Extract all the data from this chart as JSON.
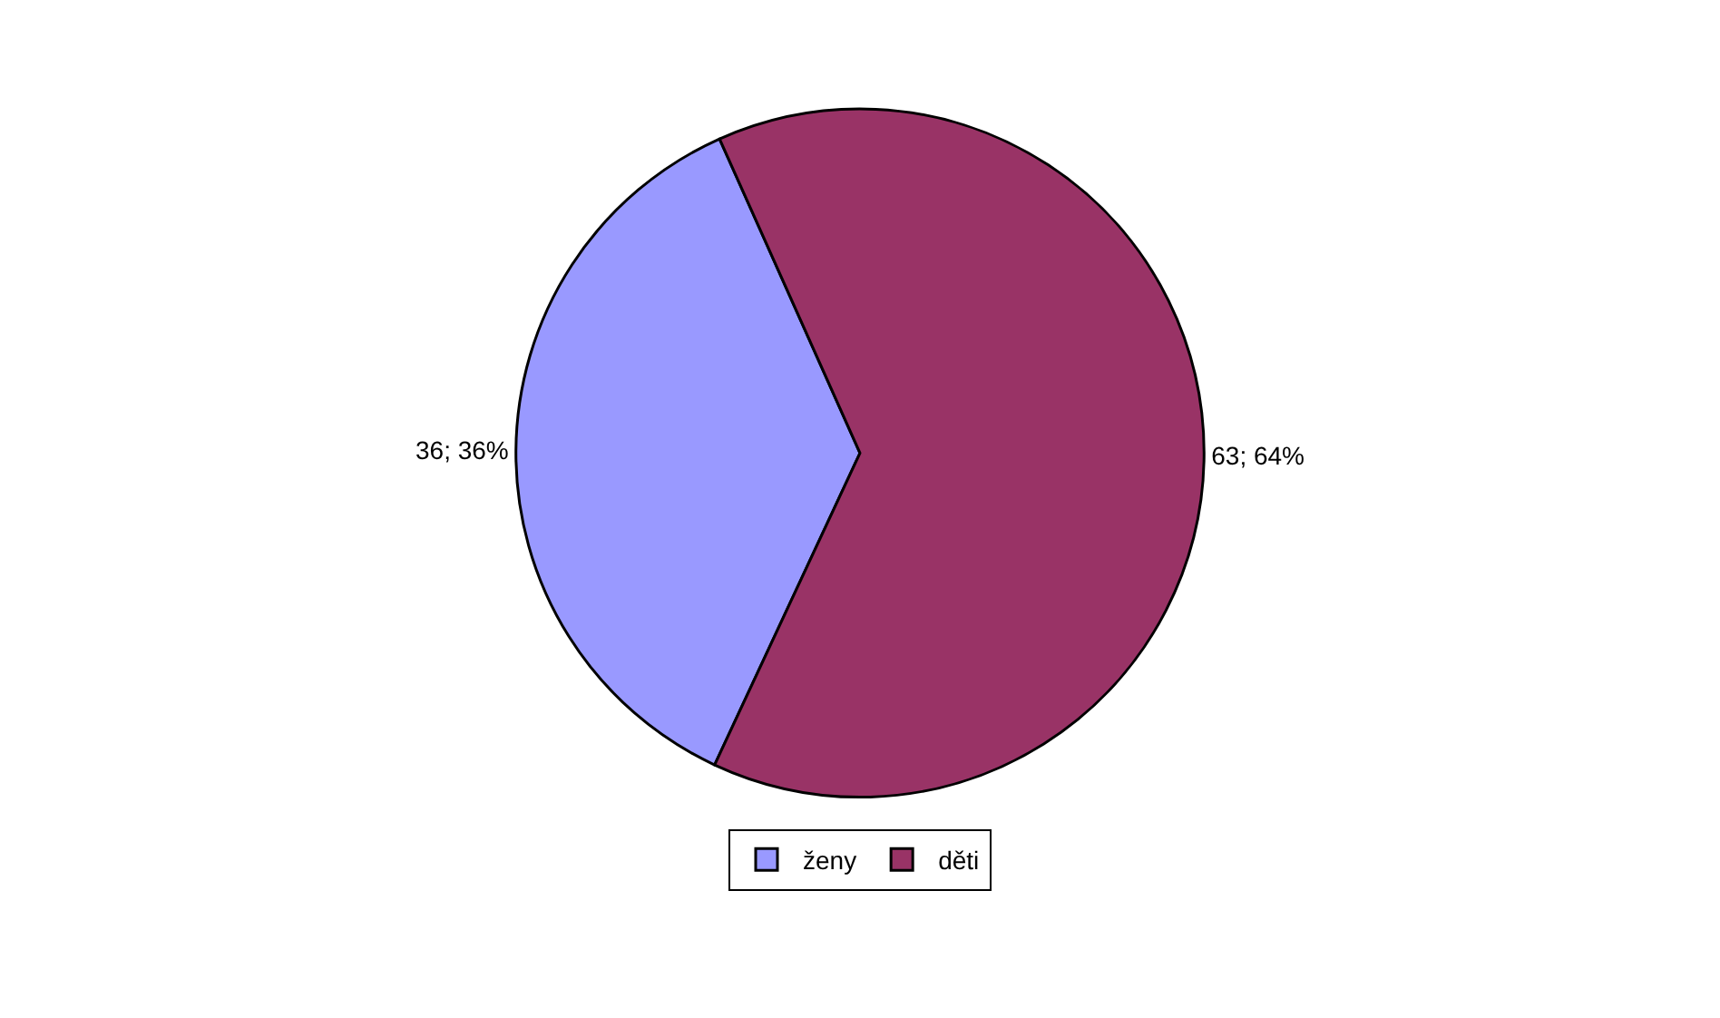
{
  "chart_data": {
    "type": "pie",
    "categories": [
      "ženy",
      "děti"
    ],
    "values": [
      36,
      63
    ],
    "colors": [
      "#9999ff",
      "#993366"
    ],
    "value_labels": [
      "36; 36%",
      "63; 64%"
    ],
    "legend": "bottom"
  }
}
